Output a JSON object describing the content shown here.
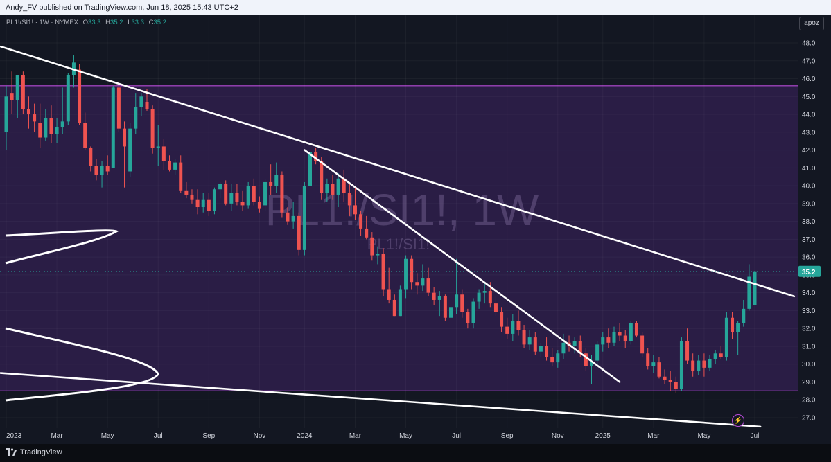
{
  "header": {
    "published_text": "Andy_FV published on TradingView.com, Jun 18, 2025 15:43 UTC+2"
  },
  "legend": {
    "symbol": "PL1!/SI1! · 1W · NYMEX",
    "o_label": "O",
    "o_value": "33.3",
    "h_label": "H",
    "h_value": "35.2",
    "l_label": "L",
    "l_value": "33.3",
    "c_label": "C",
    "c_value": "35.2"
  },
  "scale_button": "apoz",
  "watermark": {
    "main": "PL1!/SI1!, 1W",
    "sub": "PL1!/SI1!"
  },
  "footer": {
    "brand": "TradingView"
  },
  "colors": {
    "background": "#131722",
    "zone_fill": "#2a1d45",
    "zone_line": "#b84bd8",
    "up": "#26a69a",
    "down": "#ef5350",
    "trendline": "#ffffff",
    "last_price_bg": "#26a69a"
  },
  "chart_data": {
    "type": "candlestick",
    "timeframe": "1W",
    "ylim": [
      26.4,
      48.8
    ],
    "y_ticks": [
      "48.0",
      "47.0",
      "46.0",
      "45.0",
      "44.0",
      "43.0",
      "42.0",
      "41.0",
      "40.0",
      "39.0",
      "38.0",
      "37.0",
      "36.0",
      "35.0",
      "34.0",
      "33.0",
      "32.0",
      "31.0",
      "30.0",
      "29.0",
      "28.0",
      "27.0"
    ],
    "x_ticks": [
      {
        "label": "2023",
        "week": 0
      },
      {
        "label": "Mar",
        "week": 9
      },
      {
        "label": "May",
        "week": 18
      },
      {
        "label": "Jul",
        "week": 27
      },
      {
        "label": "Sep",
        "week": 36
      },
      {
        "label": "Nov",
        "week": 45
      },
      {
        "label": "2024",
        "week": 53
      },
      {
        "label": "Mar",
        "week": 62
      },
      {
        "label": "May",
        "week": 71
      },
      {
        "label": "Jul",
        "week": 80
      },
      {
        "label": "Sep",
        "week": 89
      },
      {
        "label": "Nov",
        "week": 98
      },
      {
        "label": "2025",
        "week": 106
      },
      {
        "label": "Mar",
        "week": 115
      },
      {
        "label": "May",
        "week": 124
      },
      {
        "label": "Jul",
        "week": 133
      }
    ],
    "last_price": "35.2",
    "zone": {
      "top": 45.6,
      "bottom": 28.5
    },
    "trendlines": [
      {
        "from": [
          -1,
          47.8
        ],
        "to": [
          140,
          33.8
        ]
      },
      {
        "from": [
          53,
          42.0
        ],
        "to": [
          109,
          29.0
        ]
      },
      {
        "from": [
          -1,
          29.5
        ],
        "to": [
          134,
          26.5
        ]
      }
    ],
    "candles": [
      {
        "w": 0,
        "o": 43.0,
        "h": 45.6,
        "l": 42.0,
        "c": 45.0
      },
      {
        "w": 1,
        "o": 45.2,
        "h": 46.4,
        "l": 44.0,
        "c": 44.8
      },
      {
        "w": 2,
        "o": 44.8,
        "h": 46.2,
        "l": 43.8,
        "c": 46.2
      },
      {
        "w": 3,
        "o": 46.2,
        "h": 46.4,
        "l": 44.0,
        "c": 44.3
      },
      {
        "w": 4,
        "o": 44.3,
        "h": 45.0,
        "l": 43.2,
        "c": 44.0
      },
      {
        "w": 5,
        "o": 44.0,
        "h": 44.6,
        "l": 43.0,
        "c": 43.6
      },
      {
        "w": 6,
        "o": 43.5,
        "h": 44.6,
        "l": 42.1,
        "c": 42.7
      },
      {
        "w": 7,
        "o": 42.7,
        "h": 44.3,
        "l": 42.5,
        "c": 43.8
      },
      {
        "w": 8,
        "o": 43.8,
        "h": 44.5,
        "l": 42.4,
        "c": 42.9
      },
      {
        "w": 9,
        "o": 42.9,
        "h": 43.8,
        "l": 42.4,
        "c": 43.3
      },
      {
        "w": 10,
        "o": 43.3,
        "h": 45.5,
        "l": 42.9,
        "c": 43.6
      },
      {
        "w": 11,
        "o": 43.6,
        "h": 46.3,
        "l": 43.4,
        "c": 46.2
      },
      {
        "w": 12,
        "o": 46.2,
        "h": 47.3,
        "l": 45.5,
        "c": 46.9
      },
      {
        "w": 13,
        "o": 46.5,
        "h": 46.8,
        "l": 43.4,
        "c": 43.5
      },
      {
        "w": 14,
        "o": 43.5,
        "h": 44.1,
        "l": 42.0,
        "c": 42.1
      },
      {
        "w": 15,
        "o": 42.1,
        "h": 42.2,
        "l": 40.8,
        "c": 41.1
      },
      {
        "w": 16,
        "o": 41.1,
        "h": 41.5,
        "l": 40.3,
        "c": 40.6
      },
      {
        "w": 17,
        "o": 40.6,
        "h": 41.4,
        "l": 39.9,
        "c": 41.1
      },
      {
        "w": 18,
        "o": 41.1,
        "h": 41.7,
        "l": 40.6,
        "c": 40.8
      },
      {
        "w": 19,
        "o": 41.0,
        "h": 45.6,
        "l": 41.0,
        "c": 45.5
      },
      {
        "w": 20,
        "o": 45.5,
        "h": 45.7,
        "l": 43.0,
        "c": 43.2
      },
      {
        "w": 21,
        "o": 43.2,
        "h": 43.6,
        "l": 39.9,
        "c": 42.2
      },
      {
        "w": 22,
        "o": 40.8,
        "h": 43.5,
        "l": 40.5,
        "c": 43.2
      },
      {
        "w": 23,
        "o": 43.2,
        "h": 45.2,
        "l": 42.9,
        "c": 44.4
      },
      {
        "w": 24,
        "o": 44.4,
        "h": 45.2,
        "l": 43.9,
        "c": 45.0
      },
      {
        "w": 25,
        "o": 44.7,
        "h": 45.4,
        "l": 44.2,
        "c": 44.3
      },
      {
        "w": 26,
        "o": 44.3,
        "h": 44.5,
        "l": 41.8,
        "c": 42.1
      },
      {
        "w": 27,
        "o": 42.1,
        "h": 43.4,
        "l": 41.1,
        "c": 42.2
      },
      {
        "w": 28,
        "o": 42.2,
        "h": 42.6,
        "l": 40.9,
        "c": 41.4
      },
      {
        "w": 29,
        "o": 41.4,
        "h": 41.7,
        "l": 40.8,
        "c": 40.9
      },
      {
        "w": 30,
        "o": 40.9,
        "h": 41.5,
        "l": 40.6,
        "c": 41.3
      },
      {
        "w": 31,
        "o": 41.3,
        "h": 41.7,
        "l": 39.6,
        "c": 39.7
      },
      {
        "w": 32,
        "o": 39.7,
        "h": 40.2,
        "l": 39.3,
        "c": 39.5
      },
      {
        "w": 33,
        "o": 39.5,
        "h": 39.8,
        "l": 39.0,
        "c": 39.2
      },
      {
        "w": 34,
        "o": 39.2,
        "h": 39.8,
        "l": 38.4,
        "c": 38.8
      },
      {
        "w": 35,
        "o": 38.8,
        "h": 39.6,
        "l": 38.5,
        "c": 39.2
      },
      {
        "w": 36,
        "o": 39.2,
        "h": 39.6,
        "l": 38.3,
        "c": 38.6
      },
      {
        "w": 37,
        "o": 38.6,
        "h": 39.9,
        "l": 38.4,
        "c": 39.8
      },
      {
        "w": 38,
        "o": 39.8,
        "h": 40.2,
        "l": 39.3,
        "c": 40.1
      },
      {
        "w": 39,
        "o": 40.1,
        "h": 40.3,
        "l": 38.9,
        "c": 39.0
      },
      {
        "w": 40,
        "o": 39.0,
        "h": 40.1,
        "l": 38.6,
        "c": 39.6
      },
      {
        "w": 41,
        "o": 39.6,
        "h": 40.1,
        "l": 38.9,
        "c": 39.1
      },
      {
        "w": 42,
        "o": 39.1,
        "h": 39.7,
        "l": 38.6,
        "c": 38.9
      },
      {
        "w": 43,
        "o": 38.9,
        "h": 40.2,
        "l": 38.7,
        "c": 40.0
      },
      {
        "w": 44,
        "o": 40.0,
        "h": 40.4,
        "l": 38.9,
        "c": 39.1
      },
      {
        "w": 45,
        "o": 39.1,
        "h": 39.4,
        "l": 38.5,
        "c": 38.7
      },
      {
        "w": 46,
        "o": 38.9,
        "h": 40.4,
        "l": 38.6,
        "c": 40.2
      },
      {
        "w": 47,
        "o": 40.2,
        "h": 41.2,
        "l": 39.5,
        "c": 40.0
      },
      {
        "w": 48,
        "o": 40.0,
        "h": 41.3,
        "l": 39.6,
        "c": 40.6
      },
      {
        "w": 49,
        "o": 40.6,
        "h": 40.8,
        "l": 38.2,
        "c": 38.5
      },
      {
        "w": 50,
        "o": 38.5,
        "h": 38.8,
        "l": 37.8,
        "c": 38.0
      },
      {
        "w": 51,
        "o": 38.0,
        "h": 39.1,
        "l": 37.6,
        "c": 38.3
      },
      {
        "w": 52,
        "o": 38.3,
        "h": 38.5,
        "l": 36.1,
        "c": 36.4
      },
      {
        "w": 53,
        "o": 36.4,
        "h": 40.2,
        "l": 36.1,
        "c": 40.0
      },
      {
        "w": 54,
        "o": 40.0,
        "h": 42.6,
        "l": 39.8,
        "c": 41.9
      },
      {
        "w": 55,
        "o": 41.9,
        "h": 42.1,
        "l": 41.2,
        "c": 41.4
      },
      {
        "w": 56,
        "o": 41.4,
        "h": 41.6,
        "l": 39.2,
        "c": 39.6
      },
      {
        "w": 57,
        "o": 39.6,
        "h": 40.4,
        "l": 39.1,
        "c": 40.1
      },
      {
        "w": 58,
        "o": 40.1,
        "h": 40.6,
        "l": 39.2,
        "c": 39.5
      },
      {
        "w": 59,
        "o": 39.5,
        "h": 40.7,
        "l": 38.8,
        "c": 40.4
      },
      {
        "w": 60,
        "o": 40.4,
        "h": 40.9,
        "l": 39.1,
        "c": 39.6
      },
      {
        "w": 61,
        "o": 39.6,
        "h": 40.2,
        "l": 38.3,
        "c": 38.9
      },
      {
        "w": 62,
        "o": 38.9,
        "h": 40.0,
        "l": 38.1,
        "c": 38.4
      },
      {
        "w": 63,
        "o": 38.4,
        "h": 38.6,
        "l": 37.2,
        "c": 37.6
      },
      {
        "w": 64,
        "o": 37.6,
        "h": 38.3,
        "l": 37.0,
        "c": 37.1
      },
      {
        "w": 65,
        "o": 37.1,
        "h": 37.4,
        "l": 35.8,
        "c": 36.1
      },
      {
        "w": 66,
        "o": 36.1,
        "h": 36.6,
        "l": 35.6,
        "c": 36.2
      },
      {
        "w": 67,
        "o": 36.2,
        "h": 36.5,
        "l": 33.8,
        "c": 34.2
      },
      {
        "w": 68,
        "o": 34.2,
        "h": 35.4,
        "l": 33.4,
        "c": 33.6
      },
      {
        "w": 69,
        "o": 33.6,
        "h": 33.9,
        "l": 32.7,
        "c": 32.7
      },
      {
        "w": 70,
        "o": 32.7,
        "h": 34.4,
        "l": 32.7,
        "c": 34.2
      },
      {
        "w": 71,
        "o": 34.2,
        "h": 36.1,
        "l": 33.7,
        "c": 35.9
      },
      {
        "w": 72,
        "o": 35.9,
        "h": 36.1,
        "l": 34.2,
        "c": 34.6
      },
      {
        "w": 73,
        "o": 34.6,
        "h": 35.1,
        "l": 33.9,
        "c": 34.4
      },
      {
        "w": 74,
        "o": 34.4,
        "h": 35.6,
        "l": 34.1,
        "c": 34.8
      },
      {
        "w": 75,
        "o": 34.8,
        "h": 35.4,
        "l": 33.8,
        "c": 34.0
      },
      {
        "w": 76,
        "o": 34.0,
        "h": 34.3,
        "l": 33.3,
        "c": 33.6
      },
      {
        "w": 77,
        "o": 33.6,
        "h": 34.1,
        "l": 32.7,
        "c": 33.8
      },
      {
        "w": 78,
        "o": 33.8,
        "h": 33.9,
        "l": 32.4,
        "c": 32.6
      },
      {
        "w": 79,
        "o": 32.6,
        "h": 33.5,
        "l": 32.1,
        "c": 33.2
      },
      {
        "w": 80,
        "o": 33.2,
        "h": 35.9,
        "l": 32.8,
        "c": 33.9
      },
      {
        "w": 81,
        "o": 33.9,
        "h": 34.2,
        "l": 32.6,
        "c": 32.9
      },
      {
        "w": 82,
        "o": 32.9,
        "h": 33.1,
        "l": 32.0,
        "c": 32.3
      },
      {
        "w": 83,
        "o": 32.3,
        "h": 33.7,
        "l": 32.0,
        "c": 33.5
      },
      {
        "w": 84,
        "o": 33.5,
        "h": 34.2,
        "l": 33.1,
        "c": 34.0
      },
      {
        "w": 85,
        "o": 34.0,
        "h": 34.5,
        "l": 33.4,
        "c": 34.1
      },
      {
        "w": 86,
        "o": 34.1,
        "h": 34.6,
        "l": 33.2,
        "c": 33.4
      },
      {
        "w": 87,
        "o": 33.4,
        "h": 33.8,
        "l": 32.7,
        "c": 32.9
      },
      {
        "w": 88,
        "o": 32.9,
        "h": 33.2,
        "l": 31.8,
        "c": 32.1
      },
      {
        "w": 89,
        "o": 32.1,
        "h": 32.6,
        "l": 31.4,
        "c": 31.7
      },
      {
        "w": 90,
        "o": 31.7,
        "h": 32.8,
        "l": 31.3,
        "c": 32.4
      },
      {
        "w": 91,
        "o": 32.4,
        "h": 33.0,
        "l": 31.6,
        "c": 31.9
      },
      {
        "w": 92,
        "o": 31.9,
        "h": 32.2,
        "l": 30.9,
        "c": 31.1
      },
      {
        "w": 93,
        "o": 31.1,
        "h": 31.9,
        "l": 30.8,
        "c": 31.5
      },
      {
        "w": 94,
        "o": 31.5,
        "h": 31.8,
        "l": 30.5,
        "c": 30.7
      },
      {
        "w": 95,
        "o": 30.7,
        "h": 31.2,
        "l": 30.4,
        "c": 31.0
      },
      {
        "w": 96,
        "o": 31.0,
        "h": 31.5,
        "l": 30.2,
        "c": 30.4
      },
      {
        "w": 97,
        "o": 30.4,
        "h": 30.9,
        "l": 29.9,
        "c": 30.1
      },
      {
        "w": 98,
        "o": 30.1,
        "h": 30.8,
        "l": 29.8,
        "c": 30.6
      },
      {
        "w": 99,
        "o": 30.6,
        "h": 31.7,
        "l": 30.3,
        "c": 31.2
      },
      {
        "w": 100,
        "o": 31.2,
        "h": 31.6,
        "l": 30.7,
        "c": 31.0
      },
      {
        "w": 101,
        "o": 31.0,
        "h": 31.5,
        "l": 30.6,
        "c": 31.3
      },
      {
        "w": 102,
        "o": 31.3,
        "h": 31.6,
        "l": 30.4,
        "c": 30.6
      },
      {
        "w": 103,
        "o": 30.6,
        "h": 30.9,
        "l": 29.6,
        "c": 29.9
      },
      {
        "w": 104,
        "o": 29.9,
        "h": 30.5,
        "l": 28.9,
        "c": 30.2
      },
      {
        "w": 105,
        "o": 30.2,
        "h": 31.3,
        "l": 30.0,
        "c": 31.1
      },
      {
        "w": 106,
        "o": 31.1,
        "h": 31.8,
        "l": 30.7,
        "c": 31.5
      },
      {
        "w": 107,
        "o": 31.5,
        "h": 32.0,
        "l": 30.9,
        "c": 31.2
      },
      {
        "w": 108,
        "o": 31.2,
        "h": 32.1,
        "l": 31.0,
        "c": 31.8
      },
      {
        "w": 109,
        "o": 31.8,
        "h": 32.3,
        "l": 31.3,
        "c": 31.6
      },
      {
        "w": 110,
        "o": 31.6,
        "h": 31.9,
        "l": 30.9,
        "c": 31.3
      },
      {
        "w": 111,
        "o": 31.3,
        "h": 32.4,
        "l": 31.1,
        "c": 32.3
      },
      {
        "w": 112,
        "o": 32.3,
        "h": 32.4,
        "l": 31.5,
        "c": 31.6
      },
      {
        "w": 113,
        "o": 31.6,
        "h": 31.8,
        "l": 30.4,
        "c": 30.6
      },
      {
        "w": 114,
        "o": 30.6,
        "h": 30.9,
        "l": 29.7,
        "c": 29.9
      },
      {
        "w": 115,
        "o": 29.9,
        "h": 30.5,
        "l": 29.5,
        "c": 30.1
      },
      {
        "w": 116,
        "o": 30.1,
        "h": 30.4,
        "l": 29.2,
        "c": 29.3
      },
      {
        "w": 117,
        "o": 29.3,
        "h": 29.7,
        "l": 28.9,
        "c": 29.1
      },
      {
        "w": 118,
        "o": 29.1,
        "h": 29.6,
        "l": 28.5,
        "c": 29.0
      },
      {
        "w": 119,
        "o": 29.0,
        "h": 29.3,
        "l": 28.4,
        "c": 28.6
      },
      {
        "w": 120,
        "o": 28.6,
        "h": 31.5,
        "l": 28.5,
        "c": 31.3
      },
      {
        "w": 121,
        "o": 31.3,
        "h": 32.0,
        "l": 30.0,
        "c": 30.2
      },
      {
        "w": 122,
        "o": 30.2,
        "h": 30.6,
        "l": 29.3,
        "c": 29.6
      },
      {
        "w": 123,
        "o": 29.6,
        "h": 30.5,
        "l": 29.4,
        "c": 30.2
      },
      {
        "w": 124,
        "o": 30.2,
        "h": 30.6,
        "l": 29.3,
        "c": 29.8
      },
      {
        "w": 125,
        "o": 29.8,
        "h": 30.5,
        "l": 29.6,
        "c": 30.3
      },
      {
        "w": 126,
        "o": 30.3,
        "h": 30.8,
        "l": 30.0,
        "c": 30.6
      },
      {
        "w": 127,
        "o": 30.6,
        "h": 31.0,
        "l": 30.3,
        "c": 30.4
      },
      {
        "w": 128,
        "o": 30.4,
        "h": 32.9,
        "l": 30.2,
        "c": 32.6
      },
      {
        "w": 129,
        "o": 32.6,
        "h": 32.9,
        "l": 31.4,
        "c": 31.8
      },
      {
        "w": 130,
        "o": 31.8,
        "h": 32.4,
        "l": 30.5,
        "c": 32.3
      },
      {
        "w": 131,
        "o": 32.3,
        "h": 33.6,
        "l": 32.1,
        "c": 33.1
      },
      {
        "w": 132,
        "o": 33.1,
        "h": 35.6,
        "l": 33.0,
        "c": 34.9
      },
      {
        "w": 133,
        "o": 33.3,
        "h": 35.2,
        "l": 33.3,
        "c": 35.2
      }
    ]
  }
}
